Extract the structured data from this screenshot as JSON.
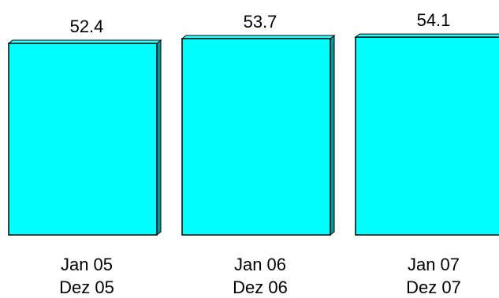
{
  "chart_data": {
    "type": "bar",
    "categories": [
      [
        "Jan 05",
        "Dez 05"
      ],
      [
        "Jan 06",
        "Dez 06"
      ],
      [
        "Jan 07",
        "Dez 07"
      ]
    ],
    "values": [
      52.4,
      53.7,
      54.1
    ],
    "data_labels": [
      "52.4",
      "53.7",
      "54.1"
    ],
    "title": "",
    "xlabel": "",
    "ylabel": "",
    "ylim": [
      0,
      56
    ],
    "grid": false,
    "legend": "none",
    "style": "3d",
    "colors": {
      "bar_front": "#00FFFF",
      "bar_side": "#00999a",
      "bar_top": "#33ffff",
      "outline": "#000000"
    }
  }
}
